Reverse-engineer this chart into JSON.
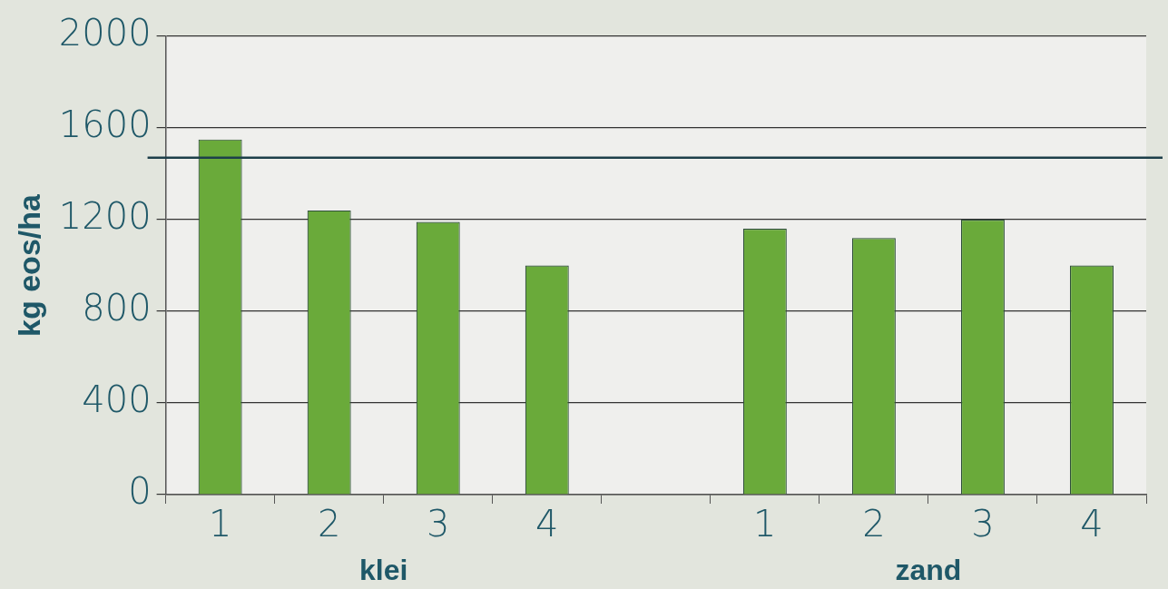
{
  "chart_data": {
    "type": "bar",
    "ylabel": "kg eos/ha",
    "categories": [
      "1",
      "2",
      "3",
      "4",
      null,
      "1",
      "2",
      "3",
      "4"
    ],
    "values": [
      1550,
      1240,
      1190,
      1000,
      null,
      1160,
      1120,
      1200,
      1000
    ],
    "color": "#6aaa3a",
    "ylim": [
      0,
      2000
    ],
    "yticks": [
      0,
      400,
      800,
      1200,
      1600,
      2000
    ],
    "grid": "y",
    "ref_lines": [
      {
        "axis": "y",
        "value": 1470,
        "color": "#1d3f4a"
      }
    ],
    "annotations": [
      "klei",
      "zand"
    ]
  }
}
